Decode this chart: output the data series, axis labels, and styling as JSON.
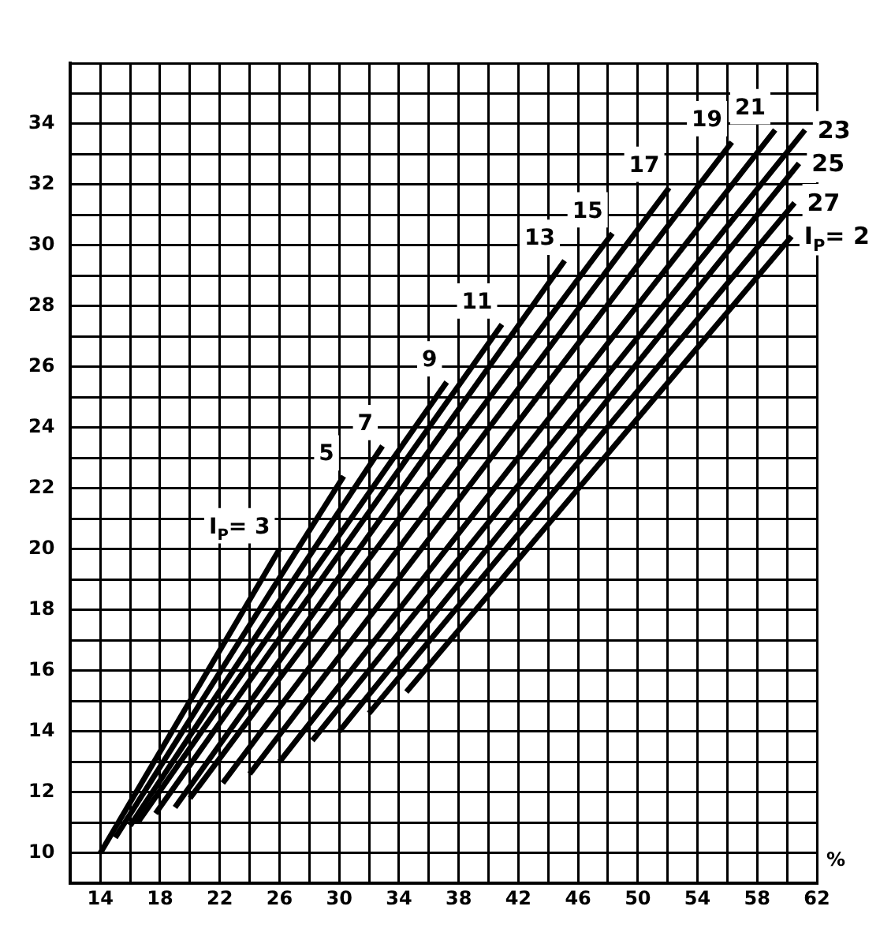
{
  "chart_data": {
    "type": "line",
    "xlabel": "%",
    "xlim": [
      12,
      62
    ],
    "ylim": [
      9,
      36
    ],
    "xticks": [
      {
        "value": 12,
        "label": null
      },
      14,
      {
        "value": 16,
        "label": null
      },
      18,
      {
        "value": 20,
        "label": null
      },
      22,
      {
        "value": 24,
        "label": null
      },
      26,
      {
        "value": 28,
        "label": null
      },
      30,
      {
        "value": 32,
        "label": null
      },
      34,
      {
        "value": 36,
        "label": null
      },
      38,
      {
        "value": 40,
        "label": null
      },
      42,
      {
        "value": 44,
        "label": null
      },
      46,
      {
        "value": 48,
        "label": null
      },
      50,
      {
        "value": 52,
        "label": null
      },
      54,
      {
        "value": 56,
        "label": null
      },
      58,
      {
        "value": 60,
        "label": null
      },
      62
    ],
    "yticks": [
      {
        "value": 9,
        "label": null
      },
      10,
      {
        "value": 11,
        "label": null
      },
      12,
      {
        "value": 13,
        "label": null
      },
      14,
      {
        "value": 15,
        "label": null
      },
      16,
      {
        "value": 17,
        "label": null
      },
      18,
      {
        "value": 19,
        "label": null
      },
      20,
      {
        "value": 21,
        "label": null
      },
      22,
      {
        "value": 23,
        "label": null
      },
      24,
      {
        "value": 25,
        "label": null
      },
      26,
      {
        "value": 27,
        "label": null
      },
      28,
      {
        "value": 29,
        "label": null
      },
      30,
      {
        "value": 31,
        "label": null
      },
      32,
      {
        "value": 33,
        "label": null
      },
      34,
      {
        "value": 35,
        "label": null
      },
      {
        "value": 36,
        "label": null
      }
    ],
    "grid": true,
    "legend": false,
    "series": [
      {
        "name": "I$_{P}$= 3",
        "color": "#000000",
        "x": [
          14,
          26
        ],
        "values": [
          10,
          20
        ]
      },
      {
        "name": "5",
        "color": "#000000",
        "x": [
          15,
          30.3
        ],
        "values": [
          10.5,
          22.4
        ]
      },
      {
        "name": "7",
        "color": "#000000",
        "x": [
          16,
          32.9
        ],
        "values": [
          10.9,
          23.4
        ]
      },
      {
        "name": "9",
        "color": "#000000",
        "x": [
          16.5,
          37.2
        ],
        "values": [
          11,
          25.5
        ]
      },
      {
        "name": "11",
        "color": "#000000",
        "x": [
          17.7,
          40.9
        ],
        "values": [
          11.3,
          27.4
        ]
      },
      {
        "name": "13",
        "color": "#000000",
        "x": [
          19,
          45.1
        ],
        "values": [
          11.5,
          29.5
        ]
      },
      {
        "name": "15",
        "color": "#000000",
        "x": [
          20,
          48.3
        ],
        "values": [
          11.8,
          30.4
        ]
      },
      {
        "name": "17",
        "color": "#000000",
        "x": [
          22.2,
          52.1
        ],
        "values": [
          12.3,
          31.9
        ]
      },
      {
        "name": "19",
        "color": "#000000",
        "x": [
          24,
          56.3
        ],
        "values": [
          12.6,
          33.4
        ]
      },
      {
        "name": "21",
        "color": "#000000",
        "x": [
          26,
          59.2
        ],
        "values": [
          13,
          33.8
        ]
      },
      {
        "name": "23",
        "color": "#000000",
        "x": [
          28.2,
          61.2
        ],
        "values": [
          13.7,
          33.8
        ]
      },
      {
        "name": "25",
        "color": "#000000",
        "x": [
          30,
          60.8
        ],
        "values": [
          14,
          32.7
        ]
      },
      {
        "name": "27",
        "color": "#000000",
        "x": [
          32,
          60.5
        ],
        "values": [
          14.6,
          31.4
        ]
      },
      {
        "name": "I$_{P}$= 2",
        "color": "#000000",
        "x": [
          34.5,
          60.3
        ],
        "values": [
          15.3,
          30.3
        ]
      }
    ]
  }
}
